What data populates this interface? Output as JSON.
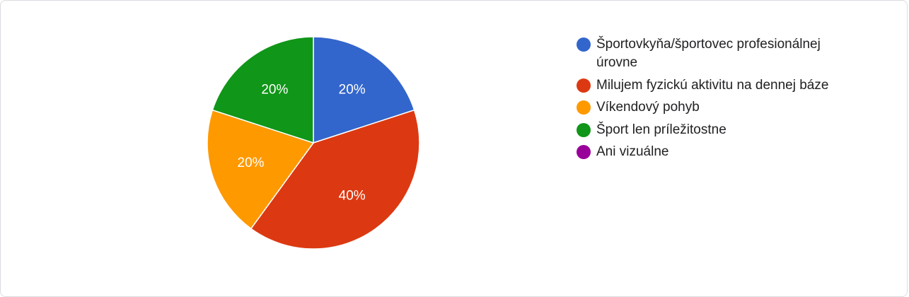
{
  "chart_data": {
    "type": "pie",
    "start_angle_deg": 90,
    "direction": "clockwise",
    "legend_position": "right",
    "slices": [
      {
        "label": "Športovkyňa/športovec profesionálnej úrovne",
        "value": 20,
        "value_label": "20%",
        "color": "#3366cc"
      },
      {
        "label": "Milujem fyzickú aktivitu na dennej báze",
        "value": 40,
        "value_label": "40%",
        "color": "#dc3912"
      },
      {
        "label": "Víkendový pohyb",
        "value": 20,
        "value_label": "20%",
        "color": "#ff9900"
      },
      {
        "label": "Šport len príležitostne",
        "value": 20,
        "value_label": "20%",
        "color": "#109618"
      },
      {
        "label": "Ani vizuálne",
        "value": 0,
        "value_label": "",
        "color": "#990099"
      }
    ]
  }
}
